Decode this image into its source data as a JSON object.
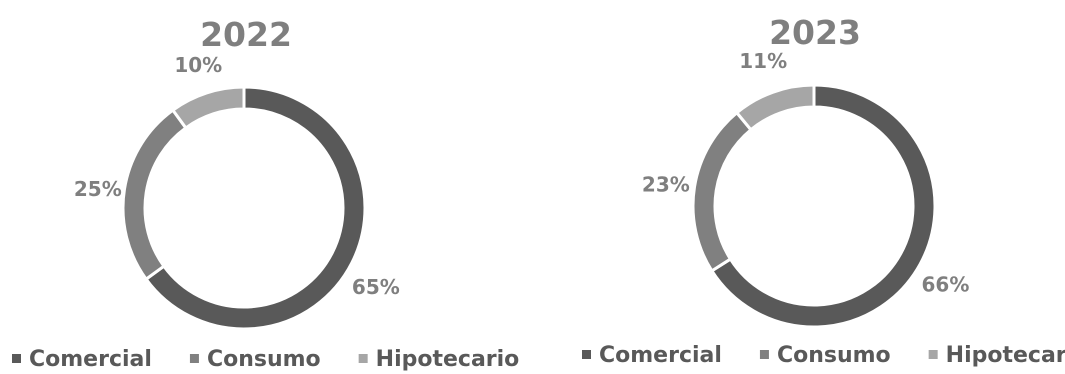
{
  "colors": {
    "title": "#7f7f7f",
    "label": "#7f7f7f",
    "legend_text": "#595959",
    "separator": "#ffffff"
  },
  "chart_data": [
    {
      "type": "pie",
      "title": "2022",
      "categories": [
        "Comercial",
        "Consumo",
        "Hipotecario"
      ],
      "values": [
        65,
        25,
        10
      ],
      "labels": [
        "65%",
        "25%",
        "10%"
      ],
      "colors": [
        "#595959",
        "#808080",
        "#a6a6a6"
      ],
      "donut": true,
      "legend": "bottom"
    },
    {
      "type": "pie",
      "title": "2023",
      "categories": [
        "Comercial",
        "Consumo",
        "Hipotecario"
      ],
      "values": [
        66,
        23,
        11
      ],
      "labels": [
        "66%",
        "23%",
        "11%"
      ],
      "colors": [
        "#595959",
        "#808080",
        "#a6a6a6"
      ],
      "donut": true,
      "legend": "bottom"
    }
  ]
}
